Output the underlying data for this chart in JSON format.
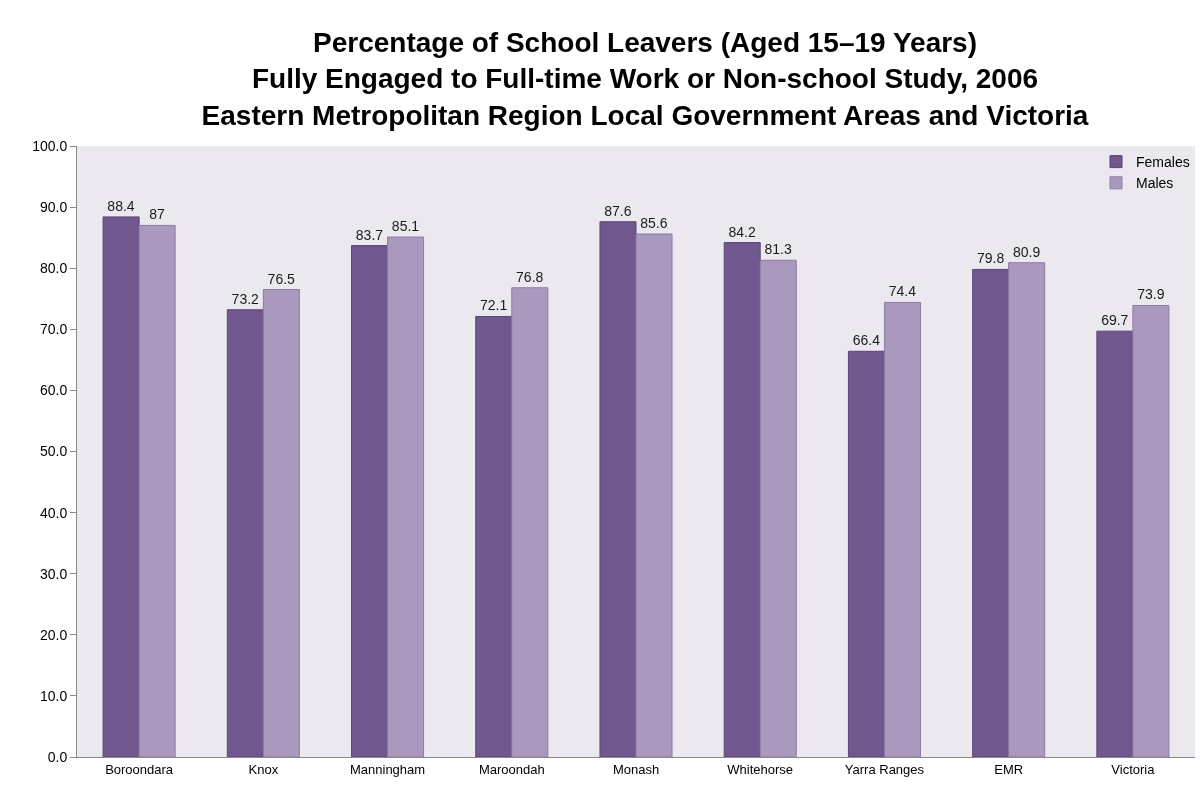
{
  "chart_data": {
    "type": "bar",
    "title": "Percentage of School Leavers (Aged 15–19 Years)\nFully Engaged to Full-time Work or Non-school Study, 2006\nEastern Metropolitan Region Local Government Areas and Victoria",
    "categories": [
      "Boroondara",
      "Knox",
      "Manningham",
      "Maroondah",
      "Monash",
      "Whitehorse",
      "Yarra Ranges",
      "EMR",
      "Victoria"
    ],
    "series": [
      {
        "name": "Females",
        "color": "#70588f",
        "values": [
          88.4,
          73.2,
          83.7,
          72.1,
          87.6,
          84.2,
          66.4,
          79.8,
          69.7
        ]
      },
      {
        "name": "Males",
        "color": "#a99abd",
        "values": [
          87,
          76.5,
          85.1,
          76.8,
          85.6,
          81.3,
          74.4,
          80.9,
          73.9
        ]
      }
    ],
    "ylim": [
      0,
      100
    ],
    "yticks": [
      {
        "value": 0,
        "label": "0.0"
      },
      {
        "value": 10,
        "label": "10.0"
      },
      {
        "value": 20,
        "label": "20.0"
      },
      {
        "value": 30,
        "label": "30.0"
      },
      {
        "value": 40,
        "label": "40.0"
      },
      {
        "value": 50,
        "label": "50.0"
      },
      {
        "value": 60,
        "label": "60.0"
      },
      {
        "value": 70,
        "label": "70.0"
      },
      {
        "value": 80,
        "label": "80.0"
      },
      {
        "value": 90,
        "label": "90.0"
      },
      {
        "value": 100,
        "label": "100.0"
      }
    ],
    "data_labels": true,
    "grid": false,
    "legend": "top right"
  }
}
